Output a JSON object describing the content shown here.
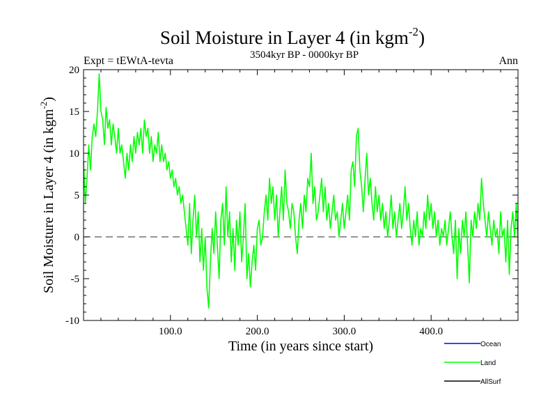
{
  "chart_data": {
    "type": "line",
    "title": "Soil Moisture in Layer 4 (in kgm",
    "title_sup": "-2",
    "title_close": ")",
    "subtitle": "3504kyr BP - 0000kyr BP",
    "expt_label": "Expt = tEWtA-tevta",
    "season_label": "Ann",
    "xlabel": "Time (in years since start)",
    "ylabel": "Soil Moisture in Layer 4 (in kgm",
    "ylabel_sup": "-2",
    "ylabel_close": ")",
    "xlim": [
      0,
      500
    ],
    "ylim": [
      -10,
      20
    ],
    "x_ticks": [
      100,
      200,
      300,
      400
    ],
    "x_tick_labels": [
      "100.0",
      "200.0",
      "300.0",
      "400.0"
    ],
    "y_ticks": [
      -10,
      -5,
      0,
      5,
      10,
      15,
      20
    ],
    "y_tick_labels": [
      "-10",
      "-5",
      "0",
      "5",
      "10",
      "15",
      "20"
    ],
    "zero_line": true,
    "series": [
      {
        "name": "Land",
        "color": "#00ff00",
        "points": [
          [
            0,
            9
          ],
          [
            2,
            4
          ],
          [
            4,
            7
          ],
          [
            6,
            11
          ],
          [
            8,
            8
          ],
          [
            10,
            12
          ],
          [
            12,
            13.5
          ],
          [
            14,
            12
          ],
          [
            16,
            15
          ],
          [
            18,
            19.5
          ],
          [
            20,
            15
          ],
          [
            22,
            14
          ],
          [
            24,
            11
          ],
          [
            26,
            15.5
          ],
          [
            28,
            13
          ],
          [
            30,
            14
          ],
          [
            32,
            11
          ],
          [
            34,
            13.5
          ],
          [
            36,
            12
          ],
          [
            38,
            10
          ],
          [
            40,
            13
          ],
          [
            42,
            10
          ],
          [
            44,
            11
          ],
          [
            46,
            9
          ],
          [
            48,
            7
          ],
          [
            50,
            10
          ],
          [
            52,
            8
          ],
          [
            54,
            11
          ],
          [
            56,
            9
          ],
          [
            58,
            12
          ],
          [
            60,
            10
          ],
          [
            62,
            12.5
          ],
          [
            64,
            11
          ],
          [
            66,
            13
          ],
          [
            68,
            10
          ],
          [
            70,
            14
          ],
          [
            72,
            12
          ],
          [
            74,
            13
          ],
          [
            76,
            10
          ],
          [
            78,
            12
          ],
          [
            80,
            9
          ],
          [
            82,
            11
          ],
          [
            84,
            10
          ],
          [
            86,
            12.5
          ],
          [
            88,
            9
          ],
          [
            90,
            11
          ],
          [
            92,
            9
          ],
          [
            94,
            10
          ],
          [
            96,
            8
          ],
          [
            98,
            9
          ],
          [
            100,
            7
          ],
          [
            102,
            8
          ],
          [
            104,
            6
          ],
          [
            106,
            7
          ],
          [
            108,
            5
          ],
          [
            110,
            6
          ],
          [
            112,
            4
          ],
          [
            114,
            5
          ],
          [
            116,
            3
          ],
          [
            118,
            1
          ],
          [
            120,
            -1
          ],
          [
            122,
            4
          ],
          [
            124,
            -2
          ],
          [
            126,
            2
          ],
          [
            128,
            5
          ],
          [
            130,
            0
          ],
          [
            132,
            3
          ],
          [
            134,
            -3
          ],
          [
            136,
            1
          ],
          [
            138,
            -4
          ],
          [
            140,
            0
          ],
          [
            142,
            -6
          ],
          [
            144,
            -8.5
          ],
          [
            146,
            -3
          ],
          [
            148,
            1
          ],
          [
            150,
            -2
          ],
          [
            152,
            3
          ],
          [
            154,
            -1
          ],
          [
            156,
            -5
          ],
          [
            158,
            2
          ],
          [
            160,
            4
          ],
          [
            162,
            -1
          ],
          [
            164,
            6
          ],
          [
            166,
            0
          ],
          [
            168,
            3
          ],
          [
            170,
            -3
          ],
          [
            172,
            1
          ],
          [
            174,
            -4
          ],
          [
            176,
            2
          ],
          [
            178,
            -1
          ],
          [
            180,
            3
          ],
          [
            182,
            -3
          ],
          [
            184,
            0
          ],
          [
            186,
            4
          ],
          [
            188,
            -5
          ],
          [
            190,
            -2
          ],
          [
            192,
            -6
          ],
          [
            194,
            -3
          ],
          [
            196,
            -1
          ],
          [
            198,
            -4
          ],
          [
            200,
            1
          ],
          [
            202,
            2
          ],
          [
            204,
            -1
          ],
          [
            206,
            0
          ],
          [
            208,
            3
          ],
          [
            210,
            5
          ],
          [
            212,
            2
          ],
          [
            214,
            7
          ],
          [
            216,
            4
          ],
          [
            218,
            6
          ],
          [
            220,
            2
          ],
          [
            222,
            5
          ],
          [
            224,
            0
          ],
          [
            226,
            3
          ],
          [
            228,
            6
          ],
          [
            230,
            2
          ],
          [
            232,
            8
          ],
          [
            234,
            4
          ],
          [
            236,
            3
          ],
          [
            238,
            1
          ],
          [
            240,
            4
          ],
          [
            242,
            3
          ],
          [
            244,
            0
          ],
          [
            246,
            -2
          ],
          [
            248,
            2
          ],
          [
            250,
            4
          ],
          [
            252,
            1
          ],
          [
            254,
            5
          ],
          [
            256,
            3
          ],
          [
            258,
            7
          ],
          [
            260,
            6
          ],
          [
            262,
            10
          ],
          [
            264,
            4
          ],
          [
            266,
            6
          ],
          [
            268,
            2
          ],
          [
            270,
            3
          ],
          [
            272,
            5
          ],
          [
            274,
            7
          ],
          [
            276,
            3
          ],
          [
            278,
            6
          ],
          [
            280,
            2
          ],
          [
            282,
            4
          ],
          [
            284,
            1
          ],
          [
            286,
            3
          ],
          [
            288,
            5
          ],
          [
            290,
            2
          ],
          [
            292,
            3
          ],
          [
            294,
            0
          ],
          [
            296,
            2
          ],
          [
            298,
            4
          ],
          [
            300,
            1
          ],
          [
            302,
            3
          ],
          [
            304,
            5
          ],
          [
            306,
            2
          ],
          [
            308,
            8
          ],
          [
            310,
            9
          ],
          [
            312,
            6
          ],
          [
            314,
            12
          ],
          [
            316,
            13
          ],
          [
            318,
            8
          ],
          [
            320,
            6
          ],
          [
            322,
            3
          ],
          [
            324,
            7
          ],
          [
            326,
            10
          ],
          [
            328,
            5
          ],
          [
            330,
            7
          ],
          [
            332,
            4
          ],
          [
            334,
            2
          ],
          [
            336,
            6
          ],
          [
            338,
            3
          ],
          [
            340,
            5
          ],
          [
            342,
            2
          ],
          [
            344,
            4
          ],
          [
            346,
            1
          ],
          [
            348,
            3
          ],
          [
            350,
            0
          ],
          [
            352,
            2
          ],
          [
            354,
            5
          ],
          [
            356,
            1
          ],
          [
            358,
            3
          ],
          [
            360,
            0
          ],
          [
            362,
            2
          ],
          [
            364,
            4
          ],
          [
            366,
            1
          ],
          [
            368,
            3
          ],
          [
            370,
            6
          ],
          [
            372,
            2
          ],
          [
            374,
            4
          ],
          [
            376,
            1
          ],
          [
            378,
            -1
          ],
          [
            380,
            2
          ],
          [
            382,
            0
          ],
          [
            384,
            3
          ],
          [
            386,
            -1
          ],
          [
            388,
            1
          ],
          [
            390,
            0
          ],
          [
            392,
            3
          ],
          [
            394,
            1
          ],
          [
            396,
            5
          ],
          [
            398,
            2
          ],
          [
            400,
            4
          ],
          [
            402,
            1
          ],
          [
            404,
            3
          ],
          [
            406,
            0
          ],
          [
            408,
            2
          ],
          [
            410,
            -1
          ],
          [
            412,
            1
          ],
          [
            414,
            0
          ],
          [
            416,
            2
          ],
          [
            418,
            -1
          ],
          [
            420,
            1
          ],
          [
            422,
            3
          ],
          [
            424,
            0
          ],
          [
            426,
            -2
          ],
          [
            428,
            2
          ],
          [
            430,
            -5
          ],
          [
            432,
            1
          ],
          [
            434,
            -2
          ],
          [
            436,
            2
          ],
          [
            438,
            0
          ],
          [
            440,
            3
          ],
          [
            442,
            -1
          ],
          [
            444,
            -5.5
          ],
          [
            446,
            2
          ],
          [
            448,
            0
          ],
          [
            450,
            3
          ],
          [
            452,
            1
          ],
          [
            454,
            4
          ],
          [
            456,
            2
          ],
          [
            458,
            7
          ],
          [
            460,
            4
          ],
          [
            462,
            2
          ],
          [
            464,
            0
          ],
          [
            466,
            3
          ],
          [
            468,
            1
          ],
          [
            470,
            -1
          ],
          [
            472,
            2
          ],
          [
            474,
            0
          ],
          [
            476,
            1
          ],
          [
            478,
            -2
          ],
          [
            480,
            3
          ],
          [
            482,
            0
          ],
          [
            484,
            1
          ],
          [
            486,
            -3
          ],
          [
            488,
            2
          ],
          [
            490,
            -4.5
          ],
          [
            492,
            1
          ],
          [
            494,
            3
          ],
          [
            496,
            0
          ],
          [
            498,
            4
          ],
          [
            500,
            -1
          ]
        ]
      }
    ],
    "legend": [
      {
        "label": "Ocean",
        "color": "#0000ff"
      },
      {
        "label": "Land",
        "color": "#00ff00"
      },
      {
        "label": "AllSurf",
        "color": "#000000"
      }
    ]
  }
}
